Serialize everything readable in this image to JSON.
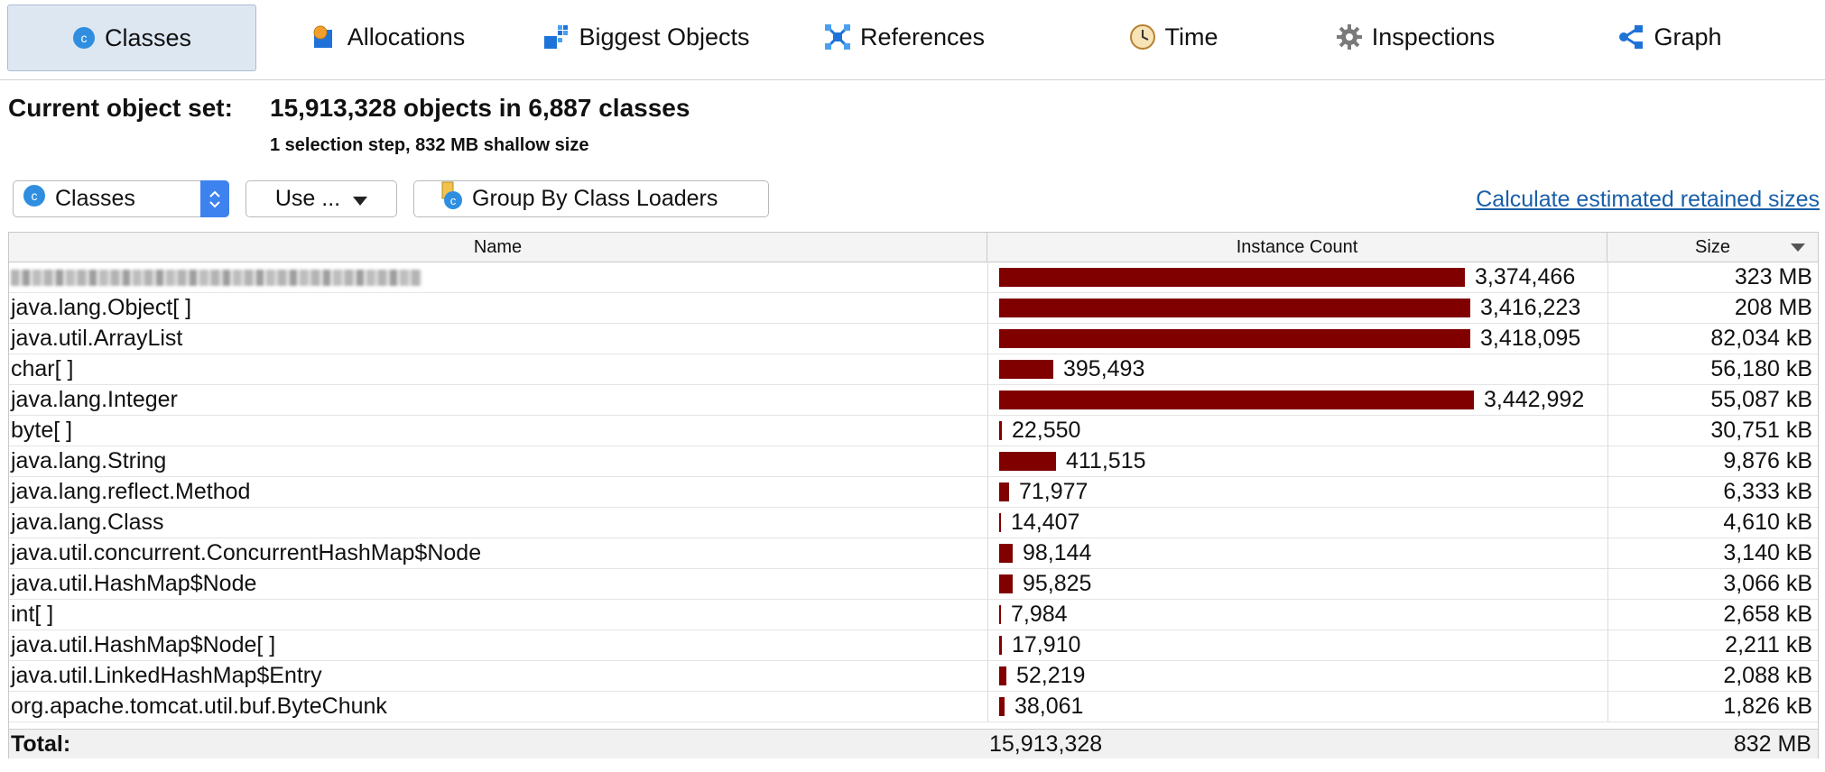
{
  "tabs": [
    {
      "label": "Classes",
      "icon": "classes-icon",
      "active": true
    },
    {
      "label": "Allocations",
      "icon": "allocations-icon",
      "active": false
    },
    {
      "label": "Biggest Objects",
      "icon": "biggest-objects-icon",
      "active": false
    },
    {
      "label": "References",
      "icon": "references-icon",
      "active": false
    },
    {
      "label": "Time",
      "icon": "clock-icon",
      "active": false
    },
    {
      "label": "Inspections",
      "icon": "gear-icon",
      "active": false
    },
    {
      "label": "Graph",
      "icon": "graph-icon",
      "active": false
    }
  ],
  "header": {
    "label": "Current object set:",
    "value": "15,913,328 objects in 6,887 classes",
    "sub": "1 selection step, 832 MB shallow size"
  },
  "toolbar": {
    "view_select": "Classes",
    "use_button": "Use ...",
    "group_button": "Group By Class Loaders",
    "calc_link": "Calculate estimated retained sizes"
  },
  "colors": {
    "bar": "#800000",
    "accent": "#3e82f0",
    "link": "#1a5fa8"
  },
  "table": {
    "columns": [
      "Name",
      "Instance Count",
      "Size"
    ],
    "sort_column": "Size",
    "sort_direction": "descending",
    "rows": [
      {
        "name": "",
        "obscured": true,
        "count": "3,374,466",
        "count_value": 3374466,
        "size": "323 MB"
      },
      {
        "name": "java.lang.Object[ ]",
        "count": "3,416,223",
        "count_value": 3416223,
        "size": "208 MB"
      },
      {
        "name": "java.util.ArrayList",
        "count": "3,418,095",
        "count_value": 3418095,
        "size": "82,034 kB"
      },
      {
        "name": "char[ ]",
        "count": "395,493",
        "count_value": 395493,
        "size": "56,180 kB"
      },
      {
        "name": "java.lang.Integer",
        "count": "3,442,992",
        "count_value": 3442992,
        "size": "55,087 kB"
      },
      {
        "name": "byte[ ]",
        "count": "22,550",
        "count_value": 22550,
        "size": "30,751 kB"
      },
      {
        "name": "java.lang.String",
        "count": "411,515",
        "count_value": 411515,
        "size": "9,876 kB"
      },
      {
        "name": "java.lang.reflect.Method",
        "count": "71,977",
        "count_value": 71977,
        "size": "6,333 kB"
      },
      {
        "name": "java.lang.Class",
        "count": "14,407",
        "count_value": 14407,
        "size": "4,610 kB"
      },
      {
        "name": "java.util.concurrent.ConcurrentHashMap$Node",
        "count": "98,144",
        "count_value": 98144,
        "size": "3,140 kB"
      },
      {
        "name": "java.util.HashMap$Node",
        "count": "95,825",
        "count_value": 95825,
        "size": "3,066 kB"
      },
      {
        "name": "int[ ]",
        "count": "7,984",
        "count_value": 7984,
        "size": "2,658 kB"
      },
      {
        "name": "java.util.HashMap$Node[ ]",
        "count": "17,910",
        "count_value": 17910,
        "size": "2,211 kB"
      },
      {
        "name": "java.util.LinkedHashMap$Entry",
        "count": "52,219",
        "count_value": 52219,
        "size": "2,088 kB"
      },
      {
        "name": "org.apache.tomcat.util.buf.ByteChunk",
        "count": "38,061",
        "count_value": 38061,
        "size": "1,826 kB"
      }
    ],
    "total": {
      "label": "Total:",
      "count": "15,913,328",
      "size": "832 MB"
    }
  }
}
